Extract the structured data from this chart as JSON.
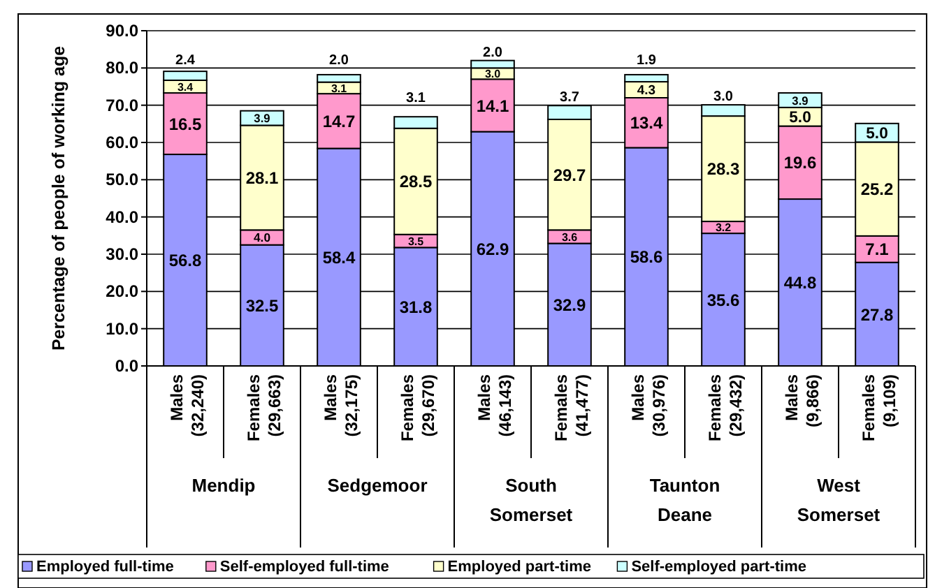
{
  "chart_data": {
    "type": "bar",
    "stacked": true,
    "ylabel": "Percentage of people of working age",
    "categories": [
      "Males\n(32,240)",
      "Females\n(29,663)",
      "Males\n(32,175)",
      "Females\n(29,670)",
      "Males\n(46,143)",
      "Females\n(41,477)",
      "Males\n(30,976)",
      "Females\n(29,432)",
      "Males\n(9,866)",
      "Females\n(9,109)"
    ],
    "annotations": [
      "Mendip",
      "Sedgemoor",
      "South\nSomerset",
      "Taunton\nDeane",
      "West\nSomerset"
    ],
    "series": [
      {
        "name": "Employed full-time",
        "color": "#9999ff",
        "values": [
          56.8,
          32.5,
          58.4,
          31.8,
          62.9,
          32.9,
          58.6,
          35.6,
          44.8,
          27.8
        ],
        "value_labels": [
          "56.8",
          "32.5",
          "58.4",
          "31.8",
          "62.9",
          "32.9",
          "58.6",
          "35.6",
          "44.8",
          "27.8"
        ]
      },
      {
        "name": "Self-employed full-time",
        "color": "#ff99cc",
        "values": [
          16.5,
          4.0,
          14.7,
          3.5,
          14.1,
          3.6,
          13.4,
          3.2,
          19.6,
          7.1
        ],
        "value_labels": [
          "16.5",
          "4.0",
          "14.7",
          "3.5",
          "14.1",
          "3.6",
          "13.4",
          "3.2",
          "19.6",
          "7.1"
        ]
      },
      {
        "name": "Employed part-time",
        "color": "#ffffcc",
        "values": [
          3.4,
          28.1,
          3.1,
          28.5,
          3.0,
          29.7,
          4.3,
          28.3,
          5.0,
          25.2
        ],
        "value_labels": [
          "3.4",
          "28.1",
          "3.1",
          "28.5",
          "3.0",
          "29.7",
          "4.3",
          "28.3",
          "5.0",
          "25.2"
        ]
      },
      {
        "name": "Self-employed part-time",
        "color": "#ccffff",
        "values": [
          2.4,
          3.9,
          2.0,
          3.1,
          2.0,
          3.7,
          1.9,
          3.0,
          3.9,
          5.0
        ],
        "value_labels": [
          "2.4",
          "3.9",
          "2.0",
          "3.1",
          "2.0",
          "3.7",
          "1.9",
          "3.0",
          "3.9",
          "5.0"
        ]
      }
    ],
    "ylim": [
      0,
      90
    ],
    "yticks": [
      {
        "value": 0,
        "label": "0.0"
      },
      {
        "value": 10,
        "label": "10.0"
      },
      {
        "value": 20,
        "label": "20.0"
      },
      {
        "value": 30,
        "label": "30.0"
      },
      {
        "value": 40,
        "label": "40.0"
      },
      {
        "value": 50,
        "label": "50.0"
      },
      {
        "value": 60,
        "label": "60.0"
      },
      {
        "value": 70,
        "label": "70.0"
      },
      {
        "value": 80,
        "label": "80.0"
      },
      {
        "value": 90,
        "label": "90.0"
      }
    ],
    "grid": "y",
    "legend": "bottom"
  }
}
